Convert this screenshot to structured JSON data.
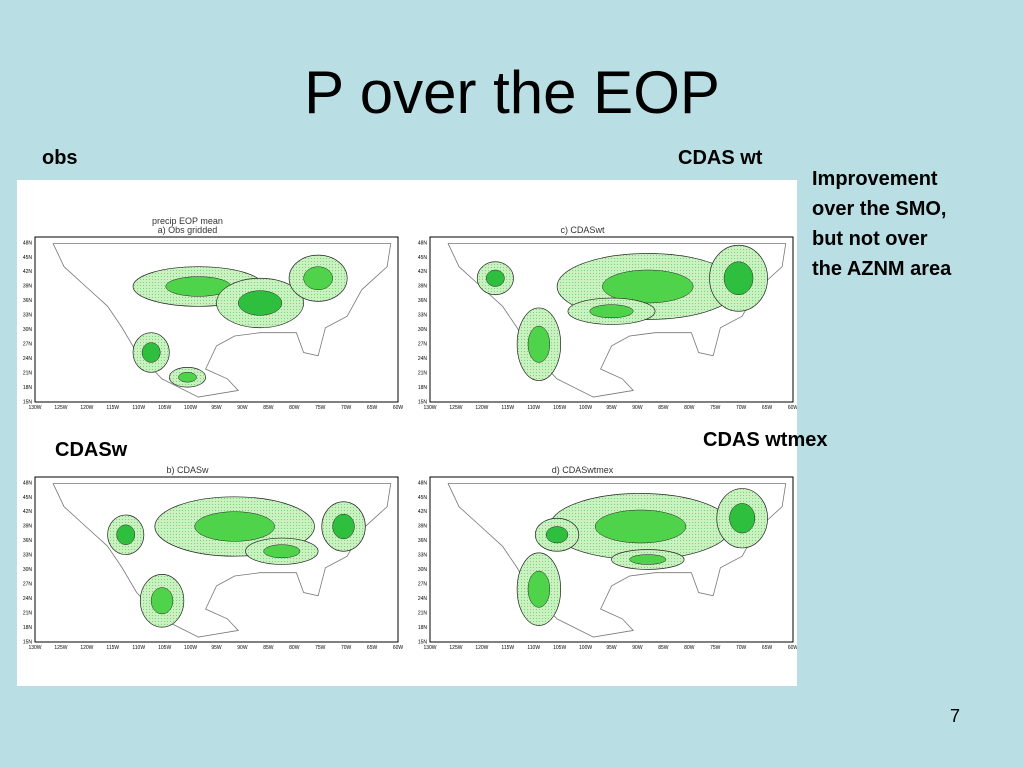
{
  "slide": {
    "title": "P over the EOP",
    "labels": {
      "obs": "obs",
      "cdas_wt": "CDAS wt",
      "cdasw": "CDASw",
      "cdas_wtmex": "CDAS wtmex"
    },
    "note": [
      "Improvement",
      "over the SMO,",
      "but not over",
      "the AZNM area"
    ],
    "page_number": "7",
    "panels": [
      {
        "title": [
          "precip  EOP  mean",
          "a) Obs gridded"
        ]
      },
      {
        "title": [
          "c)  CDASwt"
        ]
      },
      {
        "title": [
          "b)  CDASw"
        ]
      },
      {
        "title": [
          "d)  CDASwtmex"
        ]
      }
    ],
    "lat_labels": [
      "48N",
      "45N",
      "42N",
      "39N",
      "36N",
      "33N",
      "30N",
      "27N",
      "24N",
      "21N",
      "18N",
      "15N"
    ],
    "lon_labels": [
      "130W",
      "125W",
      "120W",
      "115W",
      "110W",
      "105W",
      "100W",
      "95W",
      "90W",
      "85W",
      "80W",
      "75W",
      "70W",
      "65W",
      "60W"
    ]
  }
}
